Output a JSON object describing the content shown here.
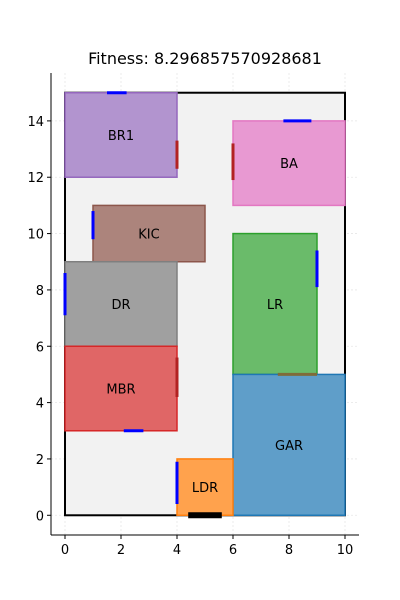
{
  "title": "Fitness: 8.296857570928681",
  "chart_data": {
    "type": "floor-plan",
    "xlim": [
      -0.5,
      10.5
    ],
    "ylim": [
      -0.7,
      15.7
    ],
    "x_ticks": [
      0,
      2,
      4,
      6,
      8,
      10
    ],
    "y_ticks": [
      0,
      2,
      4,
      6,
      8,
      10,
      12,
      14
    ],
    "grid": true,
    "boundary": {
      "x0": 0,
      "y0": 0,
      "x1": 10,
      "y1": 15
    },
    "rooms": [
      {
        "label": "BR1",
        "x0": 0,
        "y0": 12,
        "x1": 4,
        "y1": 15,
        "fill": "#b294cf",
        "edge": "#9467bd"
      },
      {
        "label": "BA",
        "x0": 6,
        "y0": 11,
        "x1": 10,
        "y1": 14,
        "fill": "#e899d2",
        "edge": "#e377c2"
      },
      {
        "label": "KIC",
        "x0": 1,
        "y0": 9,
        "x1": 5,
        "y1": 11,
        "fill": "#ac847c",
        "edge": "#8c564b"
      },
      {
        "label": "DR",
        "x0": 0,
        "y0": 6,
        "x1": 4,
        "y1": 9,
        "fill": "#a0a0a0",
        "edge": "#7f7f7f"
      },
      {
        "label": "LR",
        "x0": 6,
        "y0": 5,
        "x1": 9,
        "y1": 10,
        "fill": "#6abb6a",
        "edge": "#2ca02c"
      },
      {
        "label": "MBR",
        "x0": 0,
        "y0": 3,
        "x1": 4,
        "y1": 6,
        "fill": "#e06666",
        "edge": "#d62728"
      },
      {
        "label": "GAR",
        "x0": 6,
        "y0": 0,
        "x1": 10,
        "y1": 5,
        "fill": "#5f9ec9",
        "edge": "#1f77b4"
      },
      {
        "label": "LDR",
        "x0": 4,
        "y0": 0,
        "x1": 6,
        "y1": 2,
        "fill": "#ffa24d",
        "edge": "#ff7f0e"
      }
    ],
    "openings": [
      {
        "x0": 1.5,
        "y0": 15,
        "x1": 2.2,
        "y1": 15,
        "color": "#0000ff"
      },
      {
        "x0": 4,
        "y0": 12.3,
        "x1": 4,
        "y1": 13.3,
        "color": "#b22222"
      },
      {
        "x0": 6,
        "y0": 11.9,
        "x1": 6,
        "y1": 13.2,
        "color": "#b22222"
      },
      {
        "x0": 7.8,
        "y0": 14,
        "x1": 8.8,
        "y1": 14,
        "color": "#0000ff"
      },
      {
        "x0": 1,
        "y0": 9.8,
        "x1": 1,
        "y1": 10.8,
        "color": "#0000ff"
      },
      {
        "x0": 0,
        "y0": 7.1,
        "x1": 0,
        "y1": 8.6,
        "color": "#0000ff"
      },
      {
        "x0": 9,
        "y0": 8.1,
        "x1": 9,
        "y1": 9.4,
        "color": "#0000ff"
      },
      {
        "x0": 7.6,
        "y0": 5,
        "x1": 9,
        "y1": 5,
        "color": "#7f6b3a"
      },
      {
        "x0": 4,
        "y0": 4.2,
        "x1": 4,
        "y1": 5.6,
        "color": "#b22222"
      },
      {
        "x0": 2.1,
        "y0": 3,
        "x1": 2.8,
        "y1": 3,
        "color": "#0000ff"
      },
      {
        "x0": 4,
        "y0": 0.4,
        "x1": 4,
        "y1": 1.9,
        "color": "#0000ff"
      },
      {
        "x0": 4.4,
        "y0": 0,
        "x1": 5.6,
        "y1": 0,
        "color": "#000000"
      }
    ]
  }
}
